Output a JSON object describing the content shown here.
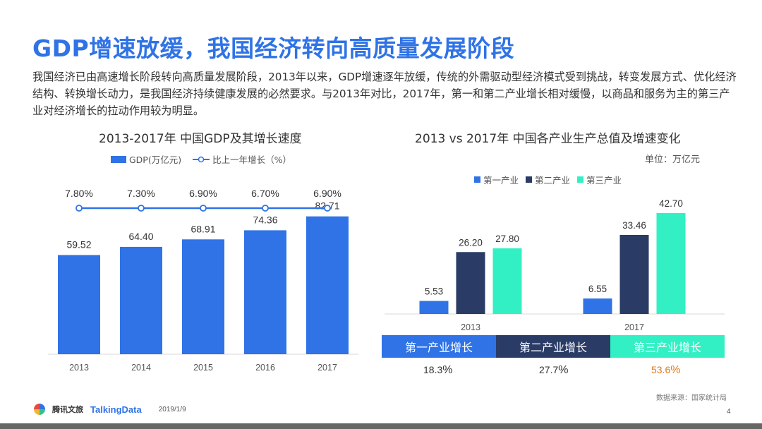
{
  "title": "GDP增速放缓，我国经济转向高质量发展阶段",
  "intro": "我国经济已由高速增长阶段转向高质量发展阶段，2013年以来，GDP增速逐年放缓，传统的外需驱动型经济模式受到挑战，转变发展方式、优化经济结构、转换增长动力，是我国经济持续健康发展的必然要求。与2013年对比，2017年，第一和第二产业增长相对缓慢，以商品和服务为主的第三产业对经济增长的拉动作用较为明显。",
  "colors": {
    "blue": "#2f73e6",
    "navy": "#2a3b66",
    "teal": "#33f0c4",
    "growth_blue": "#2f73e6",
    "accent_orange": "#e07a1f"
  },
  "chart_data": [
    {
      "type": "bar",
      "title": "2013-2017年 中国GDP及其增长速度",
      "legend": [
        "GDP(万亿元)",
        "比上一年增长（%）"
      ],
      "categories": [
        "2013",
        "2014",
        "2015",
        "2016",
        "2017"
      ],
      "values": [
        59.52,
        64.4,
        68.91,
        74.36,
        82.71
      ],
      "value_labels": [
        "59.52",
        "64.40",
        "68.91",
        "74.36",
        "82.71"
      ],
      "line_series": {
        "name": "比上一年增长（%）",
        "values": [
          7.8,
          7.3,
          6.9,
          6.7,
          6.9
        ],
        "labels": [
          "7.80%",
          "7.30%",
          "6.90%",
          "6.70%",
          "6.90%"
        ]
      },
      "ylim": [
        0,
        100
      ]
    },
    {
      "type": "bar",
      "title": "2013 vs 2017年 中国各产业生产总值及增速变化",
      "unit": "单位：万亿元",
      "categories": [
        "2013",
        "2017"
      ],
      "series": [
        {
          "name": "第一产业",
          "values": [
            5.53,
            6.55
          ],
          "labels": [
            "5.53",
            "6.55"
          ]
        },
        {
          "name": "第二产业",
          "values": [
            26.2,
            33.46
          ],
          "labels": [
            "26.20",
            "33.46"
          ]
        },
        {
          "name": "第三产业",
          "values": [
            27.8,
            42.7
          ],
          "labels": [
            "27.80",
            "42.70"
          ]
        }
      ],
      "ylim": [
        0,
        50
      ]
    }
  ],
  "growth": [
    {
      "label": "第一产业增长",
      "value": "18.3",
      "pct": "%"
    },
    {
      "label": "第二产业增长",
      "value": "27.7",
      "pct": "%"
    },
    {
      "label": "第三产业增长",
      "value": "53.6",
      "pct": "%"
    }
  ],
  "source": "数据来源：国家统计局",
  "footer": {
    "brand": "腾讯文旅",
    "brand2": "TalkingData",
    "date": "2019/1/9",
    "page": "4"
  }
}
